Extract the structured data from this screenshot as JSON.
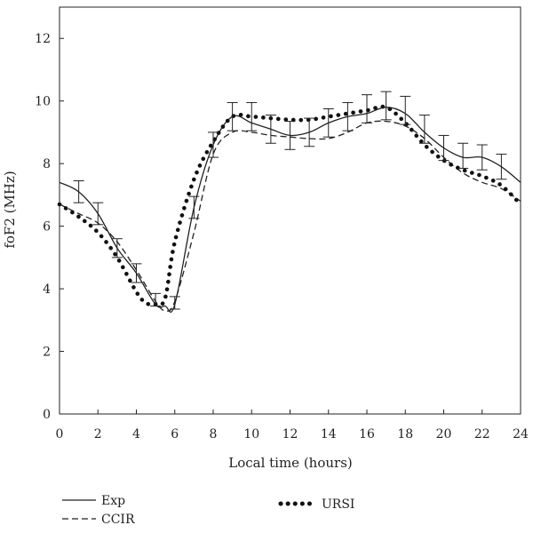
{
  "chart_data": {
    "type": "line",
    "xlabel": "Local time (hours)",
    "ylabel": "foF2 (MHz)",
    "xlim": [
      0,
      24
    ],
    "ylim": [
      0,
      13
    ],
    "xticks": [
      0,
      2,
      4,
      6,
      8,
      10,
      12,
      14,
      16,
      18,
      20,
      22,
      24
    ],
    "yticks": [
      0,
      2,
      4,
      6,
      8,
      10,
      12
    ],
    "grid": false,
    "legend": {
      "placement": "bottom",
      "entries": [
        {
          "name": "Exp",
          "style": "solid"
        },
        {
          "name": "CCIR",
          "style": "dashed"
        },
        {
          "name": "URSI",
          "style": "dotted"
        }
      ]
    },
    "series": [
      {
        "name": "Exp",
        "style": "solid",
        "x": [
          0,
          1,
          2,
          3,
          4,
          5,
          5.5,
          6,
          7,
          8,
          9,
          10,
          11,
          12,
          13,
          14,
          15,
          16,
          17,
          18,
          19,
          20,
          21,
          22,
          23,
          24
        ],
        "y": [
          7.4,
          7.1,
          6.4,
          5.3,
          4.5,
          3.5,
          3.45,
          3.5,
          6.6,
          8.6,
          9.5,
          9.3,
          9.1,
          8.9,
          9.0,
          9.3,
          9.5,
          9.6,
          9.8,
          9.6,
          9.0,
          8.5,
          8.2,
          8.2,
          7.9,
          7.4
        ]
      },
      {
        "name": "CCIR",
        "style": "dashed",
        "x": [
          0,
          1,
          2,
          3,
          4,
          5,
          5.5,
          6,
          7,
          8,
          9,
          10,
          11,
          12,
          13,
          14,
          15,
          16,
          17,
          18,
          19,
          20,
          21,
          22,
          23,
          24
        ],
        "y": [
          6.7,
          6.4,
          6.1,
          5.5,
          4.6,
          3.6,
          3.3,
          3.6,
          5.8,
          8.3,
          9.0,
          9.0,
          8.9,
          8.85,
          8.8,
          8.8,
          9.0,
          9.3,
          9.35,
          9.2,
          8.8,
          8.2,
          7.7,
          7.4,
          7.2,
          6.8
        ]
      },
      {
        "name": "URSI",
        "style": "dotted",
        "x": [
          0,
          1,
          2,
          3,
          4,
          4.5,
          5,
          5.5,
          6,
          7,
          8,
          9,
          10,
          11,
          12,
          13,
          14,
          15,
          16,
          17,
          18,
          19,
          20,
          21,
          22,
          23,
          24
        ],
        "y": [
          6.7,
          6.3,
          5.8,
          5.0,
          3.9,
          3.55,
          3.5,
          3.7,
          5.5,
          7.5,
          8.7,
          9.5,
          9.5,
          9.45,
          9.4,
          9.4,
          9.5,
          9.6,
          9.7,
          9.8,
          9.3,
          8.6,
          8.1,
          7.8,
          7.6,
          7.3,
          6.7
        ]
      }
    ],
    "error_bars": {
      "series": "Exp",
      "x": [
        1,
        2,
        3,
        4,
        5,
        6,
        7,
        8,
        9,
        10,
        11,
        12,
        13,
        14,
        15,
        16,
        17,
        18,
        19,
        20,
        21,
        22,
        23
      ],
      "y": [
        7.1,
        6.4,
        5.3,
        4.5,
        3.65,
        3.55,
        6.6,
        8.6,
        9.5,
        9.5,
        9.1,
        8.9,
        9.0,
        9.3,
        9.5,
        9.75,
        9.85,
        9.7,
        9.1,
        8.5,
        8.25,
        8.2,
        7.9
      ],
      "err": [
        0.35,
        0.35,
        0.3,
        0.3,
        0.2,
        0.2,
        0.35,
        0.4,
        0.45,
        0.45,
        0.45,
        0.45,
        0.45,
        0.45,
        0.45,
        0.45,
        0.45,
        0.45,
        0.45,
        0.4,
        0.4,
        0.4,
        0.4
      ]
    }
  }
}
